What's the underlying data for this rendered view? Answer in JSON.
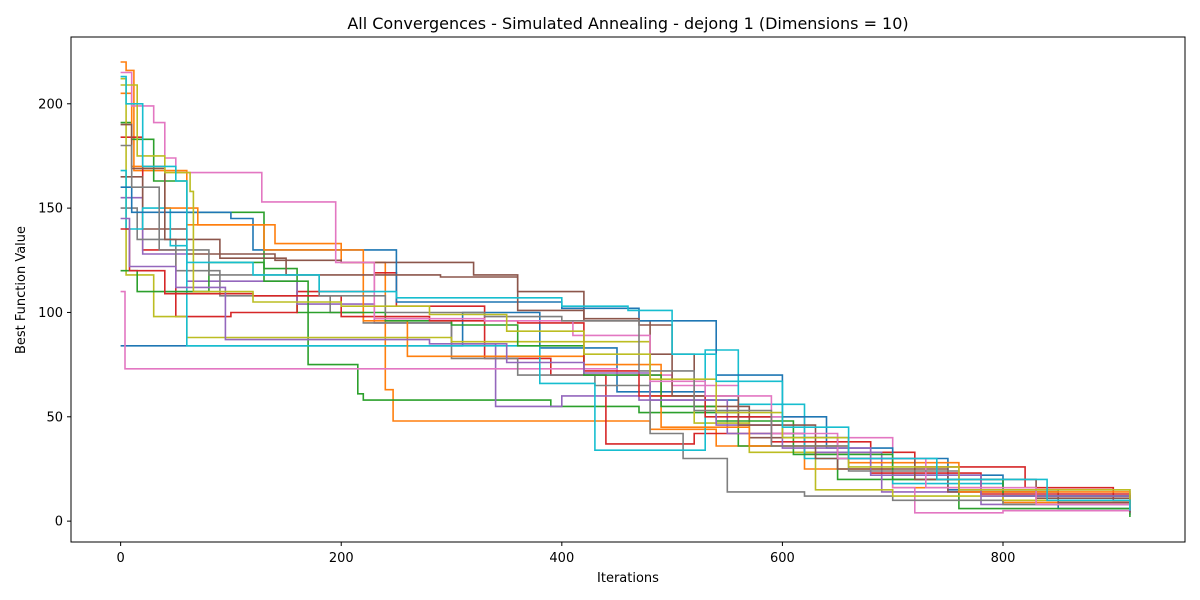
{
  "chart_data": {
    "type": "line",
    "title": "All Convergences - Simulated Annealing - dejong 1 (Dimensions = 10)",
    "xlabel": "Iterations",
    "ylabel": "Best Function Value",
    "xlim": [
      -45,
      965
    ],
    "ylim": [
      -10,
      232
    ],
    "xticks": [
      0,
      200,
      400,
      600,
      800
    ],
    "yticks": [
      0,
      50,
      100,
      150,
      200
    ],
    "grid": false,
    "legend": "none",
    "series": [
      {
        "color": "#1f77b4",
        "points": [
          [
            0,
            84
          ],
          [
            200,
            84
          ],
          [
            310,
            100
          ],
          [
            380,
            83
          ],
          [
            450,
            62
          ],
          [
            530,
            58
          ],
          [
            560,
            50
          ],
          [
            600,
            40
          ],
          [
            660,
            30
          ],
          [
            750,
            15
          ],
          [
            850,
            6
          ],
          [
            915,
            3
          ]
        ]
      },
      {
        "color": "#ff7f0e",
        "points": [
          [
            0,
            220
          ],
          [
            5,
            216
          ],
          [
            12,
            168
          ],
          [
            60,
            142
          ],
          [
            140,
            133
          ],
          [
            200,
            124
          ],
          [
            240,
            63
          ],
          [
            247,
            48
          ],
          [
            440,
            48
          ],
          [
            480,
            44
          ],
          [
            540,
            36
          ],
          [
            620,
            25
          ],
          [
            700,
            16
          ],
          [
            800,
            9
          ],
          [
            915,
            4
          ]
        ]
      },
      {
        "color": "#2ca02c",
        "points": [
          [
            0,
            191
          ],
          [
            10,
            183
          ],
          [
            30,
            163
          ],
          [
            60,
            148
          ],
          [
            90,
            148
          ],
          [
            130,
            121
          ],
          [
            160,
            100
          ],
          [
            170,
            75
          ],
          [
            215,
            61
          ],
          [
            220,
            58
          ],
          [
            340,
            58
          ],
          [
            390,
            55
          ],
          [
            470,
            52
          ],
          [
            560,
            36
          ],
          [
            650,
            20
          ],
          [
            760,
            6
          ],
          [
            915,
            2
          ]
        ]
      },
      {
        "color": "#d62728",
        "points": [
          [
            0,
            184
          ],
          [
            20,
            130
          ],
          [
            50,
            98
          ],
          [
            100,
            100
          ],
          [
            160,
            110
          ],
          [
            230,
            119
          ],
          [
            250,
            103
          ],
          [
            330,
            78
          ],
          [
            390,
            70
          ],
          [
            440,
            37
          ],
          [
            520,
            42
          ],
          [
            620,
            33
          ],
          [
            720,
            26
          ],
          [
            820,
            16
          ],
          [
            900,
            10
          ],
          [
            915,
            8
          ]
        ]
      },
      {
        "color": "#9467bd",
        "points": [
          [
            0,
            155
          ],
          [
            20,
            128
          ],
          [
            60,
            115
          ],
          [
            120,
            115
          ],
          [
            160,
            104
          ],
          [
            230,
            95
          ],
          [
            300,
            85
          ],
          [
            340,
            55
          ],
          [
            400,
            60
          ],
          [
            470,
            58
          ],
          [
            550,
            42
          ],
          [
            620,
            33
          ],
          [
            690,
            14
          ],
          [
            780,
            8
          ],
          [
            915,
            5
          ]
        ]
      },
      {
        "color": "#8c564b",
        "points": [
          [
            0,
            165
          ],
          [
            20,
            140
          ],
          [
            60,
            128
          ],
          [
            140,
            125
          ],
          [
            200,
            124
          ],
          [
            280,
            124
          ],
          [
            320,
            118
          ],
          [
            360,
            110
          ],
          [
            420,
            96
          ],
          [
            480,
            80
          ],
          [
            520,
            55
          ],
          [
            570,
            40
          ],
          [
            650,
            25
          ],
          [
            750,
            14
          ],
          [
            850,
            9
          ],
          [
            915,
            6
          ]
        ]
      },
      {
        "color": "#e377c2",
        "points": [
          [
            0,
            110
          ],
          [
            4,
            73
          ],
          [
            200,
            73
          ],
          [
            380,
            73
          ],
          [
            450,
            70
          ],
          [
            500,
            65
          ],
          [
            560,
            50
          ],
          [
            620,
            40
          ],
          [
            700,
            16
          ],
          [
            720,
            4
          ],
          [
            800,
            5
          ],
          [
            915,
            4
          ]
        ]
      },
      {
        "color": "#7f7f7f",
        "points": [
          [
            0,
            150
          ],
          [
            15,
            135
          ],
          [
            50,
            120
          ],
          [
            90,
            108
          ],
          [
            190,
            100
          ],
          [
            220,
            95
          ],
          [
            300,
            78
          ],
          [
            360,
            70
          ],
          [
            430,
            65
          ],
          [
            480,
            42
          ],
          [
            510,
            30
          ],
          [
            550,
            14
          ],
          [
            620,
            12
          ],
          [
            700,
            10
          ],
          [
            800,
            8
          ],
          [
            915,
            5
          ]
        ]
      },
      {
        "color": "#bcbd22",
        "points": [
          [
            0,
            212
          ],
          [
            5,
            118
          ],
          [
            30,
            98
          ],
          [
            60,
            88
          ],
          [
            200,
            88
          ],
          [
            300,
            86
          ],
          [
            420,
            86
          ],
          [
            460,
            86
          ],
          [
            480,
            60
          ],
          [
            520,
            47
          ],
          [
            570,
            33
          ],
          [
            630,
            15
          ],
          [
            700,
            12
          ],
          [
            800,
            10
          ],
          [
            915,
            6
          ]
        ]
      },
      {
        "color": "#17becf",
        "points": [
          [
            0,
            168
          ],
          [
            5,
            140
          ],
          [
            20,
            150
          ],
          [
            45,
            132
          ],
          [
            60,
            84
          ],
          [
            200,
            84
          ],
          [
            300,
            84
          ],
          [
            380,
            66
          ],
          [
            430,
            34
          ],
          [
            500,
            34
          ],
          [
            530,
            82
          ],
          [
            560,
            56
          ],
          [
            620,
            30
          ],
          [
            700,
            18
          ],
          [
            800,
            12
          ],
          [
            915,
            6
          ]
        ]
      },
      {
        "color": "#1f77b4",
        "points": [
          [
            0,
            160
          ],
          [
            10,
            148
          ],
          [
            100,
            145
          ],
          [
            120,
            130
          ],
          [
            250,
            105
          ],
          [
            400,
            102
          ],
          [
            470,
            96
          ],
          [
            540,
            70
          ],
          [
            600,
            50
          ],
          [
            640,
            35
          ],
          [
            700,
            22
          ],
          [
            800,
            12
          ],
          [
            915,
            4
          ]
        ]
      },
      {
        "color": "#ff7f0e",
        "points": [
          [
            0,
            205
          ],
          [
            10,
            170
          ],
          [
            40,
            150
          ],
          [
            70,
            142
          ],
          [
            130,
            130
          ],
          [
            220,
            96
          ],
          [
            260,
            79
          ],
          [
            340,
            79
          ],
          [
            420,
            75
          ],
          [
            490,
            45
          ],
          [
            570,
            36
          ],
          [
            660,
            28
          ],
          [
            760,
            14
          ],
          [
            915,
            6
          ]
        ]
      },
      {
        "color": "#2ca02c",
        "points": [
          [
            0,
            120
          ],
          [
            15,
            110
          ],
          [
            80,
            124
          ],
          [
            130,
            115
          ],
          [
            170,
            100
          ],
          [
            240,
            96
          ],
          [
            300,
            94
          ],
          [
            360,
            84
          ],
          [
            420,
            70
          ],
          [
            490,
            55
          ],
          [
            540,
            48
          ],
          [
            610,
            32
          ],
          [
            700,
            20
          ],
          [
            800,
            12
          ],
          [
            915,
            5
          ]
        ]
      },
      {
        "color": "#d62728",
        "points": [
          [
            0,
            140
          ],
          [
            8,
            120
          ],
          [
            40,
            109
          ],
          [
            120,
            108
          ],
          [
            200,
            98
          ],
          [
            280,
            96
          ],
          [
            360,
            95
          ],
          [
            420,
            72
          ],
          [
            470,
            60
          ],
          [
            530,
            50
          ],
          [
            590,
            38
          ],
          [
            680,
            23
          ],
          [
            780,
            13
          ],
          [
            915,
            7
          ]
        ]
      },
      {
        "color": "#9467bd",
        "points": [
          [
            0,
            145
          ],
          [
            8,
            122
          ],
          [
            50,
            112
          ],
          [
            95,
            87
          ],
          [
            200,
            87
          ],
          [
            280,
            85
          ],
          [
            350,
            76
          ],
          [
            420,
            71
          ],
          [
            480,
            58
          ],
          [
            540,
            46
          ],
          [
            600,
            35
          ],
          [
            680,
            22
          ],
          [
            780,
            12
          ],
          [
            915,
            5
          ]
        ]
      },
      {
        "color": "#8c564b",
        "points": [
          [
            0,
            190
          ],
          [
            10,
            169
          ],
          [
            40,
            135
          ],
          [
            90,
            126
          ],
          [
            150,
            118
          ],
          [
            220,
            118
          ],
          [
            290,
            117
          ],
          [
            360,
            101
          ],
          [
            420,
            97
          ],
          [
            470,
            94
          ],
          [
            500,
            60
          ],
          [
            560,
            46
          ],
          [
            630,
            30
          ],
          [
            720,
            20
          ],
          [
            830,
            11
          ],
          [
            915,
            4
          ]
        ]
      },
      {
        "color": "#e377c2",
        "points": [
          [
            0,
            215
          ],
          [
            10,
            199
          ],
          [
            30,
            191
          ],
          [
            40,
            174
          ],
          [
            50,
            167
          ],
          [
            100,
            167
          ],
          [
            125,
            167
          ],
          [
            128,
            153
          ],
          [
            190,
            153
          ],
          [
            195,
            124
          ],
          [
            230,
            97
          ],
          [
            330,
            96
          ],
          [
            410,
            89
          ],
          [
            480,
            67
          ],
          [
            530,
            60
          ],
          [
            590,
            42
          ],
          [
            650,
            30
          ],
          [
            730,
            16
          ],
          [
            830,
            8
          ],
          [
            915,
            5
          ]
        ]
      },
      {
        "color": "#7f7f7f",
        "points": [
          [
            0,
            180
          ],
          [
            10,
            160
          ],
          [
            35,
            130
          ],
          [
            80,
            118
          ],
          [
            180,
            108
          ],
          [
            240,
            100
          ],
          [
            330,
            98
          ],
          [
            400,
            96
          ],
          [
            470,
            72
          ],
          [
            520,
            53
          ],
          [
            590,
            36
          ],
          [
            660,
            24
          ],
          [
            760,
            15
          ],
          [
            915,
            6
          ]
        ]
      },
      {
        "color": "#bcbd22",
        "points": [
          [
            0,
            209
          ],
          [
            15,
            175
          ],
          [
            40,
            167
          ],
          [
            60,
            167
          ],
          [
            63,
            158
          ],
          [
            66,
            110
          ],
          [
            120,
            105
          ],
          [
            200,
            103
          ],
          [
            280,
            99
          ],
          [
            350,
            91
          ],
          [
            420,
            80
          ],
          [
            480,
            68
          ],
          [
            540,
            52
          ],
          [
            600,
            40
          ],
          [
            660,
            26
          ],
          [
            760,
            15
          ],
          [
            915,
            7
          ]
        ]
      },
      {
        "color": "#17becf",
        "points": [
          [
            0,
            213
          ],
          [
            5,
            200
          ],
          [
            20,
            170
          ],
          [
            50,
            163
          ],
          [
            60,
            124
          ],
          [
            120,
            118
          ],
          [
            180,
            110
          ],
          [
            250,
            107
          ],
          [
            350,
            107
          ],
          [
            400,
            103
          ],
          [
            460,
            101
          ],
          [
            500,
            80
          ],
          [
            540,
            67
          ],
          [
            600,
            45
          ],
          [
            660,
            30
          ],
          [
            740,
            20
          ],
          [
            840,
            10
          ],
          [
            915,
            5
          ]
        ]
      }
    ]
  }
}
